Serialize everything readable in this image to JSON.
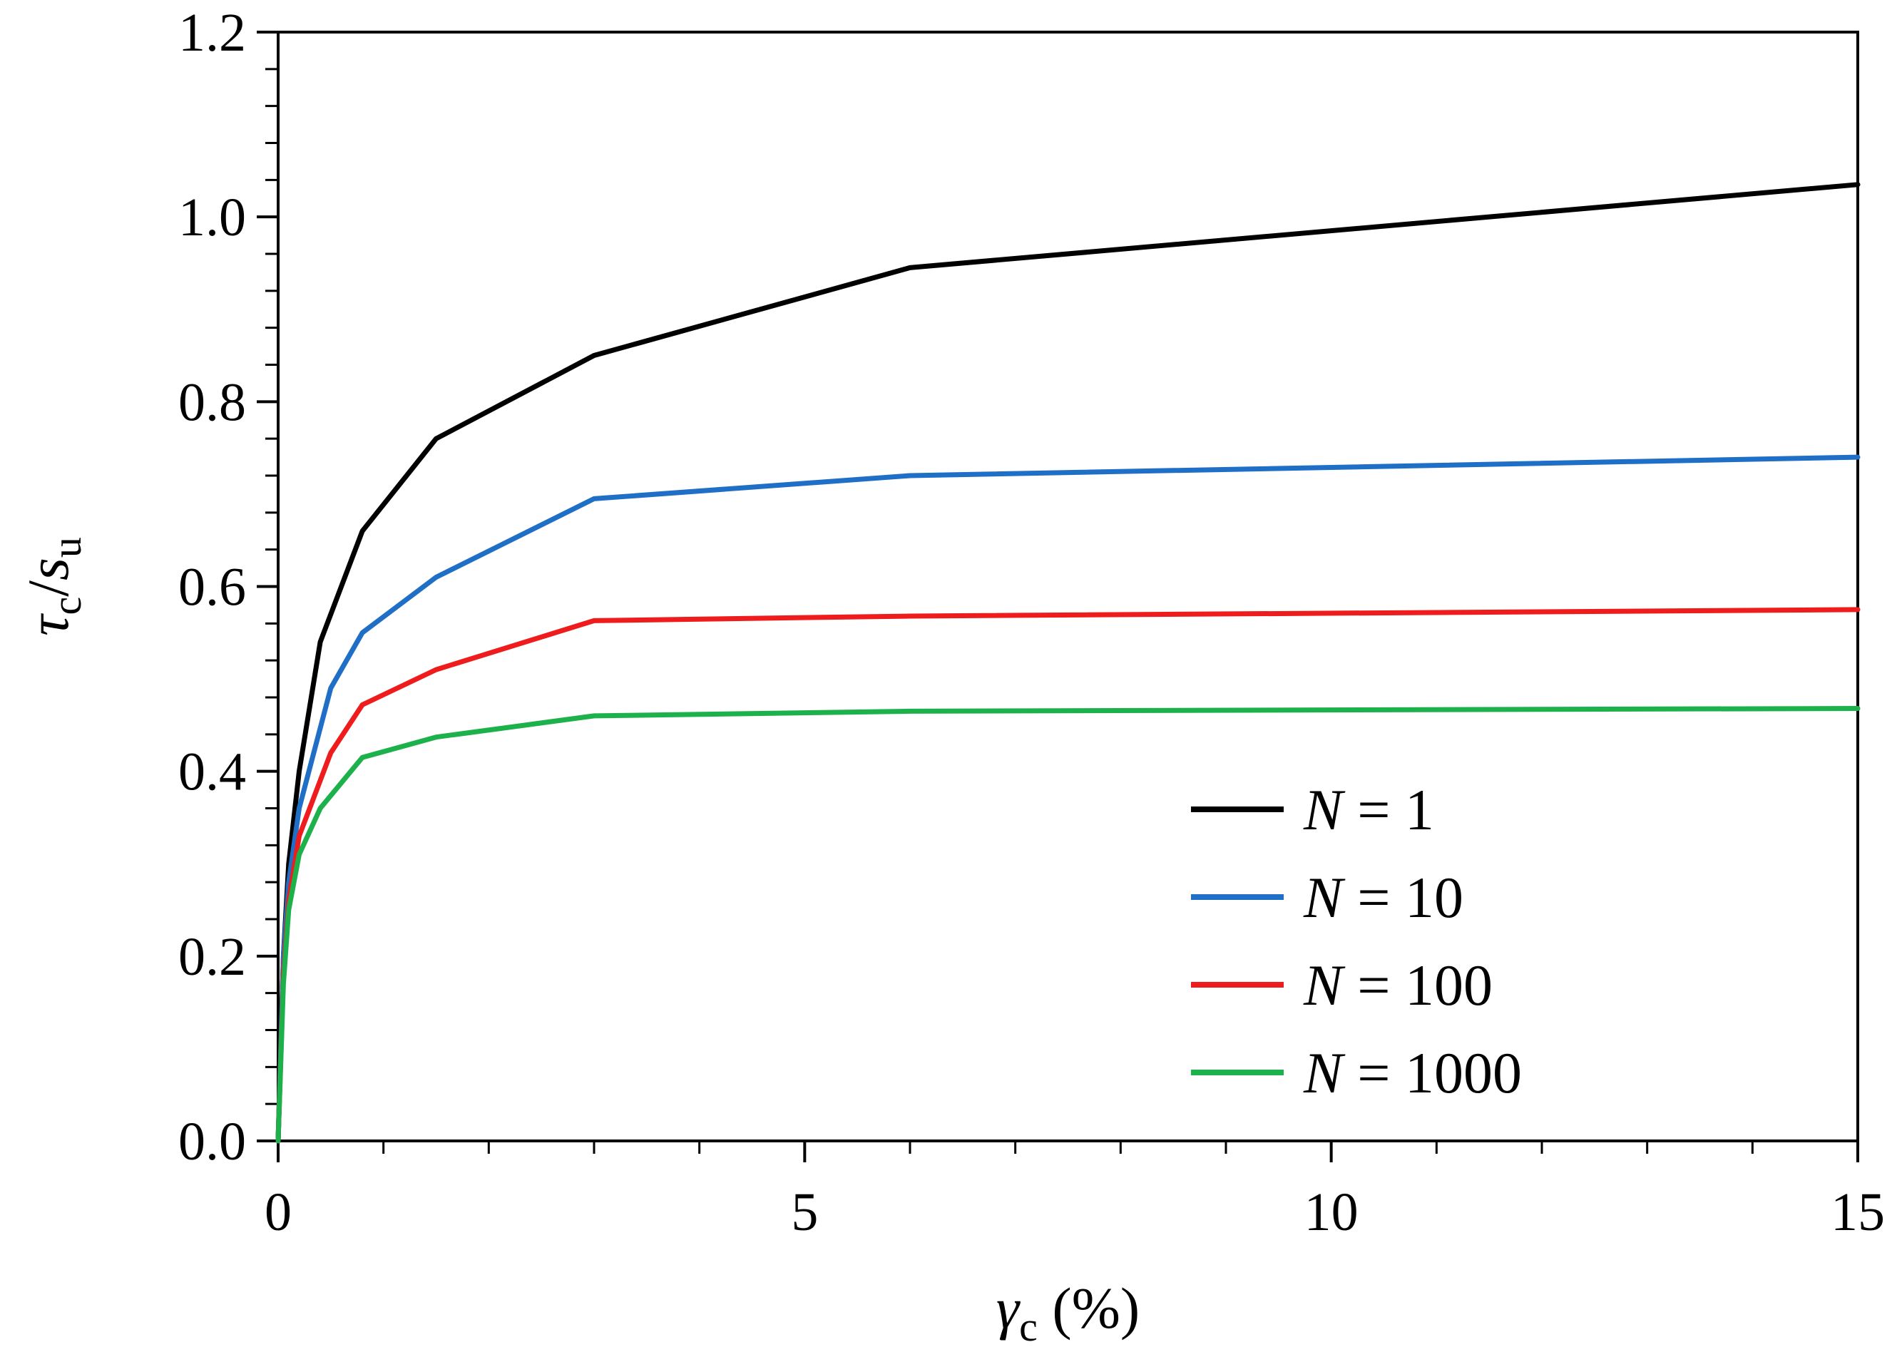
{
  "chart_data": {
    "type": "line",
    "title": "",
    "xlabel": {
      "symbol": "γ",
      "subscript": "c",
      "unit": " (%)"
    },
    "ylabel": {
      "symbol_num": "τ",
      "sub_num": "c",
      "slash": "/",
      "symbol_den": "s",
      "sub_den": "u"
    },
    "xlim": [
      0,
      15
    ],
    "ylim": [
      0,
      1.2
    ],
    "xticks": [
      0,
      5,
      10,
      15
    ],
    "xtick_labels": [
      "0",
      "5",
      "10",
      "15"
    ],
    "xminor_step": 1,
    "yticks": [
      0.0,
      0.2,
      0.4,
      0.6,
      0.8,
      1.0,
      1.2
    ],
    "ytick_labels": [
      "0.0",
      "0.2",
      "0.4",
      "0.6",
      "0.8",
      "1.0",
      "1.2"
    ],
    "yminor_step": 0.04,
    "grid": false,
    "legend_position": "center-right",
    "series": [
      {
        "name": "N = 1",
        "legend_var": "N",
        "legend_rest": " = 1",
        "color": "#000000",
        "x": [
          0,
          0.05,
          0.1,
          0.2,
          0.4,
          0.8,
          1.5,
          3,
          6,
          15
        ],
        "y": [
          0.0,
          0.2,
          0.3,
          0.4,
          0.54,
          0.66,
          0.76,
          0.85,
          0.945,
          1.035
        ]
      },
      {
        "name": "N = 10",
        "legend_var": "N",
        "legend_rest": " = 10",
        "color": "#1f6fc6",
        "x": [
          0,
          0.05,
          0.1,
          0.2,
          0.5,
          0.8,
          1.5,
          3,
          6,
          15
        ],
        "y": [
          0.0,
          0.2,
          0.28,
          0.36,
          0.49,
          0.55,
          0.61,
          0.695,
          0.72,
          0.74
        ]
      },
      {
        "name": "N = 100",
        "legend_var": "N",
        "legend_rest": " = 100",
        "color": "#ee1c1c",
        "x": [
          0,
          0.05,
          0.1,
          0.2,
          0.5,
          0.8,
          1.5,
          3,
          6,
          15
        ],
        "y": [
          0.0,
          0.18,
          0.26,
          0.33,
          0.42,
          0.472,
          0.51,
          0.563,
          0.568,
          0.575
        ]
      },
      {
        "name": "N = 1000",
        "legend_var": "N",
        "legend_rest": " = 1000",
        "color": "#1db14b",
        "x": [
          0,
          0.05,
          0.1,
          0.2,
          0.4,
          0.8,
          1.5,
          3,
          6,
          15
        ],
        "y": [
          0.0,
          0.17,
          0.25,
          0.31,
          0.36,
          0.415,
          0.437,
          0.46,
          0.465,
          0.468
        ]
      }
    ]
  }
}
